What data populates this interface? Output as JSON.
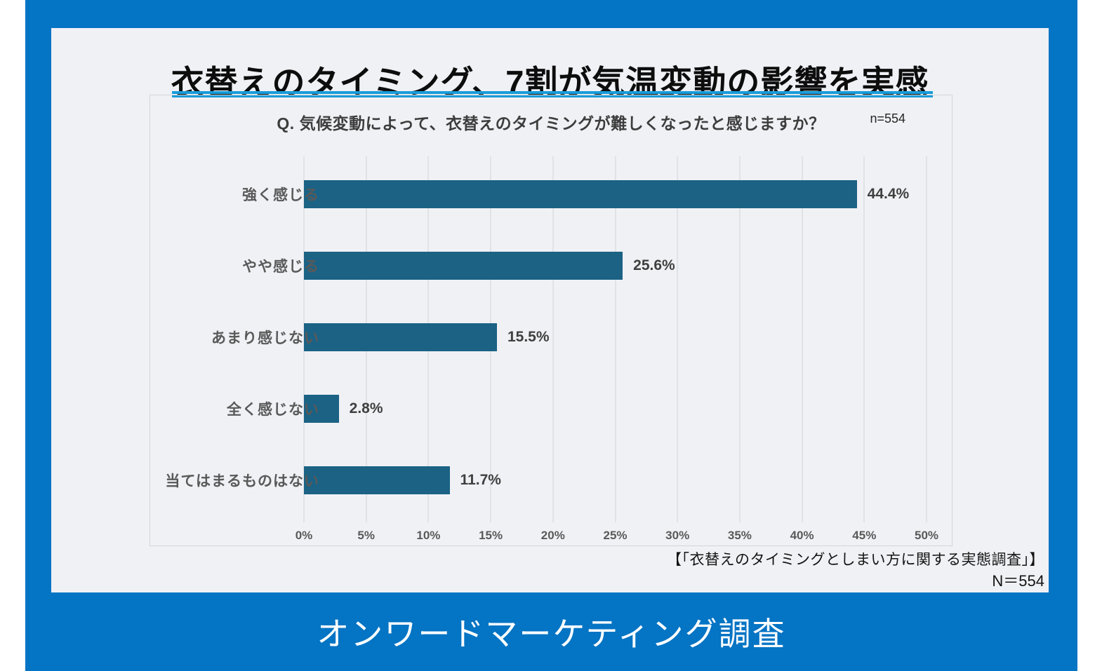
{
  "title": "衣替えのタイミング、7割が気温変動の影響を実感",
  "question": "Q. 気候変動によって、衣替えのタイミングが難しくなったと感じますか？",
  "sample_size_label": "n=554",
  "footer": {
    "source_label": "【「衣替えのタイミングとしまい方に関する実態調査」】",
    "n_label": "N＝554"
  },
  "brand_label": "オンワードマーケティング調査",
  "colors": {
    "frame_blue": "#0474c4",
    "card_background": "#f0f1f5",
    "bar_teal": "#1b6285",
    "underline_blue": "#189cd9",
    "gridline_gray": "#e0e2e6"
  },
  "chart_data": {
    "type": "bar",
    "orientation": "horizontal",
    "title": "Q. 気候変動によって、衣替えのタイミングが難しくなったと感じますか？",
    "categories": [
      "強く感じる",
      "やや感じる",
      "あまり感じない",
      "全く感じない",
      "当てはまるものはない"
    ],
    "values": [
      44.4,
      25.6,
      15.5,
      2.8,
      11.7
    ],
    "value_labels": [
      "44.4%",
      "25.6%",
      "15.5%",
      "2.8%",
      "11.7%"
    ],
    "xlim": [
      0,
      50
    ],
    "x_ticks": [
      "0%",
      "5%",
      "10%",
      "15%",
      "20%",
      "25%",
      "30%",
      "35%",
      "40%",
      "45%",
      "50%"
    ],
    "xlabel": "",
    "ylabel": "",
    "grid": true,
    "legend": false,
    "sample_size": "n=554"
  }
}
